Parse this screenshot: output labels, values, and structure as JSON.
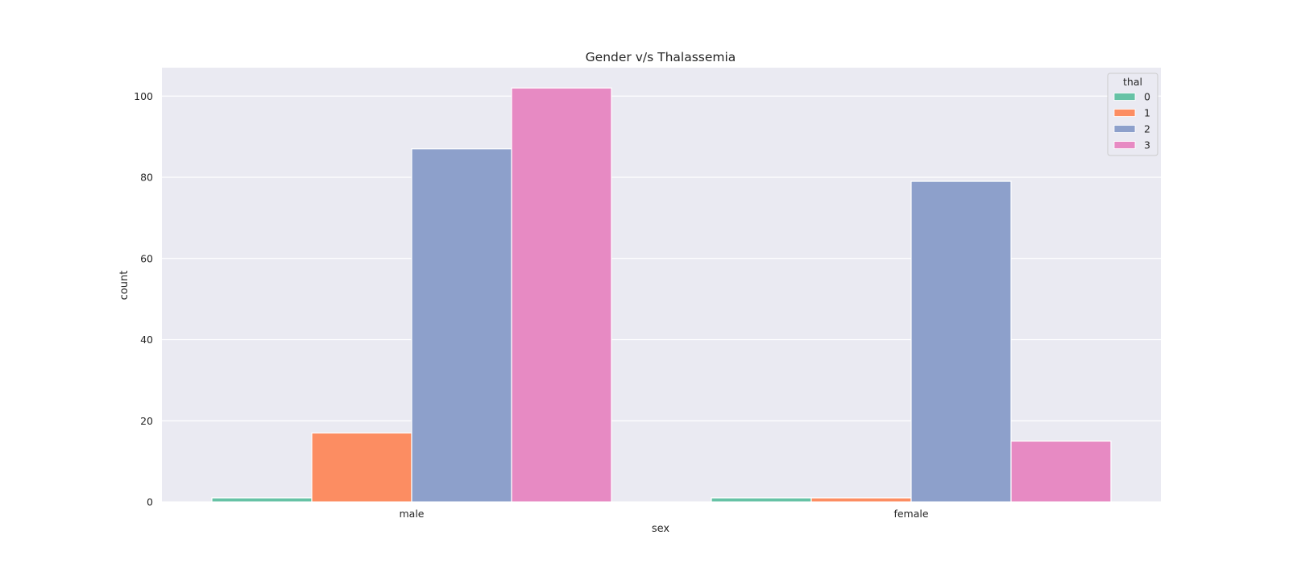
{
  "chart_data": {
    "type": "bar",
    "title": "Gender v/s Thalassemia",
    "xlabel": "sex",
    "ylabel": "count",
    "categories": [
      "male",
      "female"
    ],
    "series": [
      {
        "name": "0",
        "color": "#66c2a5",
        "values": [
          1,
          1
        ]
      },
      {
        "name": "1",
        "color": "#fc8d62",
        "values": [
          17,
          1
        ]
      },
      {
        "name": "2",
        "color": "#8da0cb",
        "values": [
          87,
          79
        ]
      },
      {
        "name": "3",
        "color": "#e78ac3",
        "values": [
          102,
          15
        ]
      }
    ],
    "ylim": [
      0,
      107
    ],
    "yticks": [
      0,
      20,
      40,
      60,
      80,
      100
    ],
    "grid": true,
    "legend": {
      "title": "thal",
      "position": "top-right"
    },
    "colors": {
      "plot_background": "#eaeaf2",
      "grid": "#ffffff"
    }
  }
}
